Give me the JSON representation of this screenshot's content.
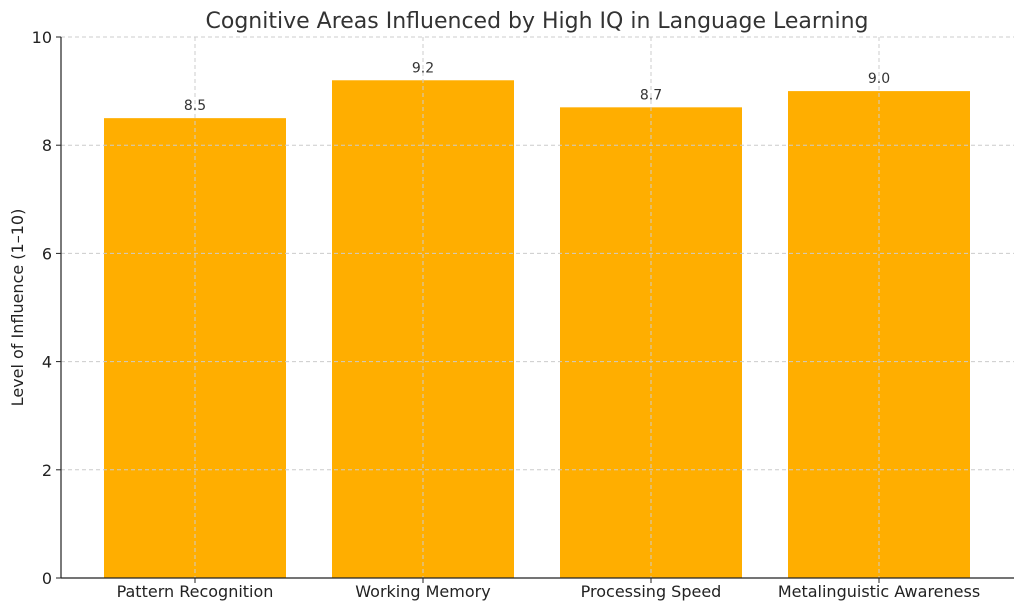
{
  "chart_data": {
    "type": "bar",
    "title": "Cognitive Areas Influenced by High IQ in Language Learning",
    "xlabel": "",
    "ylabel": "Level of Influence (1–10)",
    "categories": [
      "Pattern Recognition",
      "Working Memory",
      "Processing Speed",
      "Metalinguistic Awareness"
    ],
    "values": [
      8.5,
      9.2,
      8.7,
      9.0
    ],
    "value_labels": [
      "8.5",
      "9.2",
      "8.7",
      "9.0"
    ],
    "ylim": [
      0,
      10
    ],
    "yticks": [
      0,
      2,
      4,
      6,
      8,
      10
    ],
    "ytick_labels": [
      "0",
      "2",
      "4",
      "6",
      "8",
      "10"
    ],
    "grid": true,
    "bar_color": "#FFAE00",
    "grid_color": "#cccccc",
    "axis_color": "#222222"
  }
}
